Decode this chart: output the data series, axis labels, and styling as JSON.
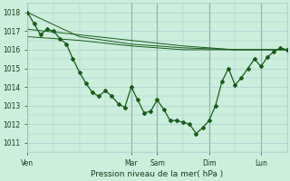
{
  "title": "Pression niveau de la mer( hPa )",
  "bg_color": "#cceedd",
  "grid_color": "#aacccc",
  "line_color": "#1a5c1a",
  "ylim": [
    1010.5,
    1018.5
  ],
  "yticks": [
    1011,
    1012,
    1013,
    1014,
    1015,
    1016,
    1017,
    1018
  ],
  "xlim": [
    0,
    240
  ],
  "xtick_positions": [
    0,
    96,
    120,
    168,
    216
  ],
  "xtick_labels": [
    "Ven",
    "Mar",
    "Sam",
    "Dim",
    "Lun"
  ],
  "series1_x": [
    0,
    6,
    12,
    18,
    24,
    30,
    36,
    42,
    48,
    54,
    60,
    66,
    72,
    78,
    84,
    90,
    96,
    102,
    108,
    114,
    120,
    126,
    132,
    138,
    144,
    150,
    156,
    162,
    168,
    174,
    180,
    186,
    192,
    198,
    204,
    210,
    216,
    222,
    228,
    234,
    240
  ],
  "series1_y": [
    1018.0,
    1017.4,
    1016.8,
    1017.1,
    1017.0,
    1016.6,
    1016.3,
    1015.5,
    1014.8,
    1014.2,
    1013.7,
    1013.5,
    1013.8,
    1013.5,
    1013.1,
    1012.9,
    1014.0,
    1013.3,
    1012.6,
    1012.7,
    1013.3,
    1012.8,
    1012.2,
    1012.2,
    1012.1,
    1012.0,
    1011.5,
    1011.8,
    1012.2,
    1013.0,
    1014.3,
    1015.0,
    1014.1,
    1014.5,
    1015.0,
    1015.5,
    1015.1,
    1015.6,
    1015.9,
    1016.1,
    1016.0
  ],
  "series2_x": [
    0,
    48,
    96,
    144,
    192,
    240
  ],
  "series2_y": [
    1018.0,
    1016.7,
    1016.3,
    1016.1,
    1016.0,
    1016.0
  ],
  "series3_x": [
    0,
    48,
    96,
    144,
    192,
    240
  ],
  "series3_y": [
    1016.7,
    1016.5,
    1016.2,
    1016.0,
    1016.0,
    1016.0
  ],
  "series4_x": [
    0,
    48,
    96,
    144,
    192,
    240
  ],
  "series4_y": [
    1017.1,
    1016.8,
    1016.5,
    1016.2,
    1016.0,
    1016.0
  ],
  "vline_positions": [
    0,
    96,
    120,
    168,
    216
  ]
}
